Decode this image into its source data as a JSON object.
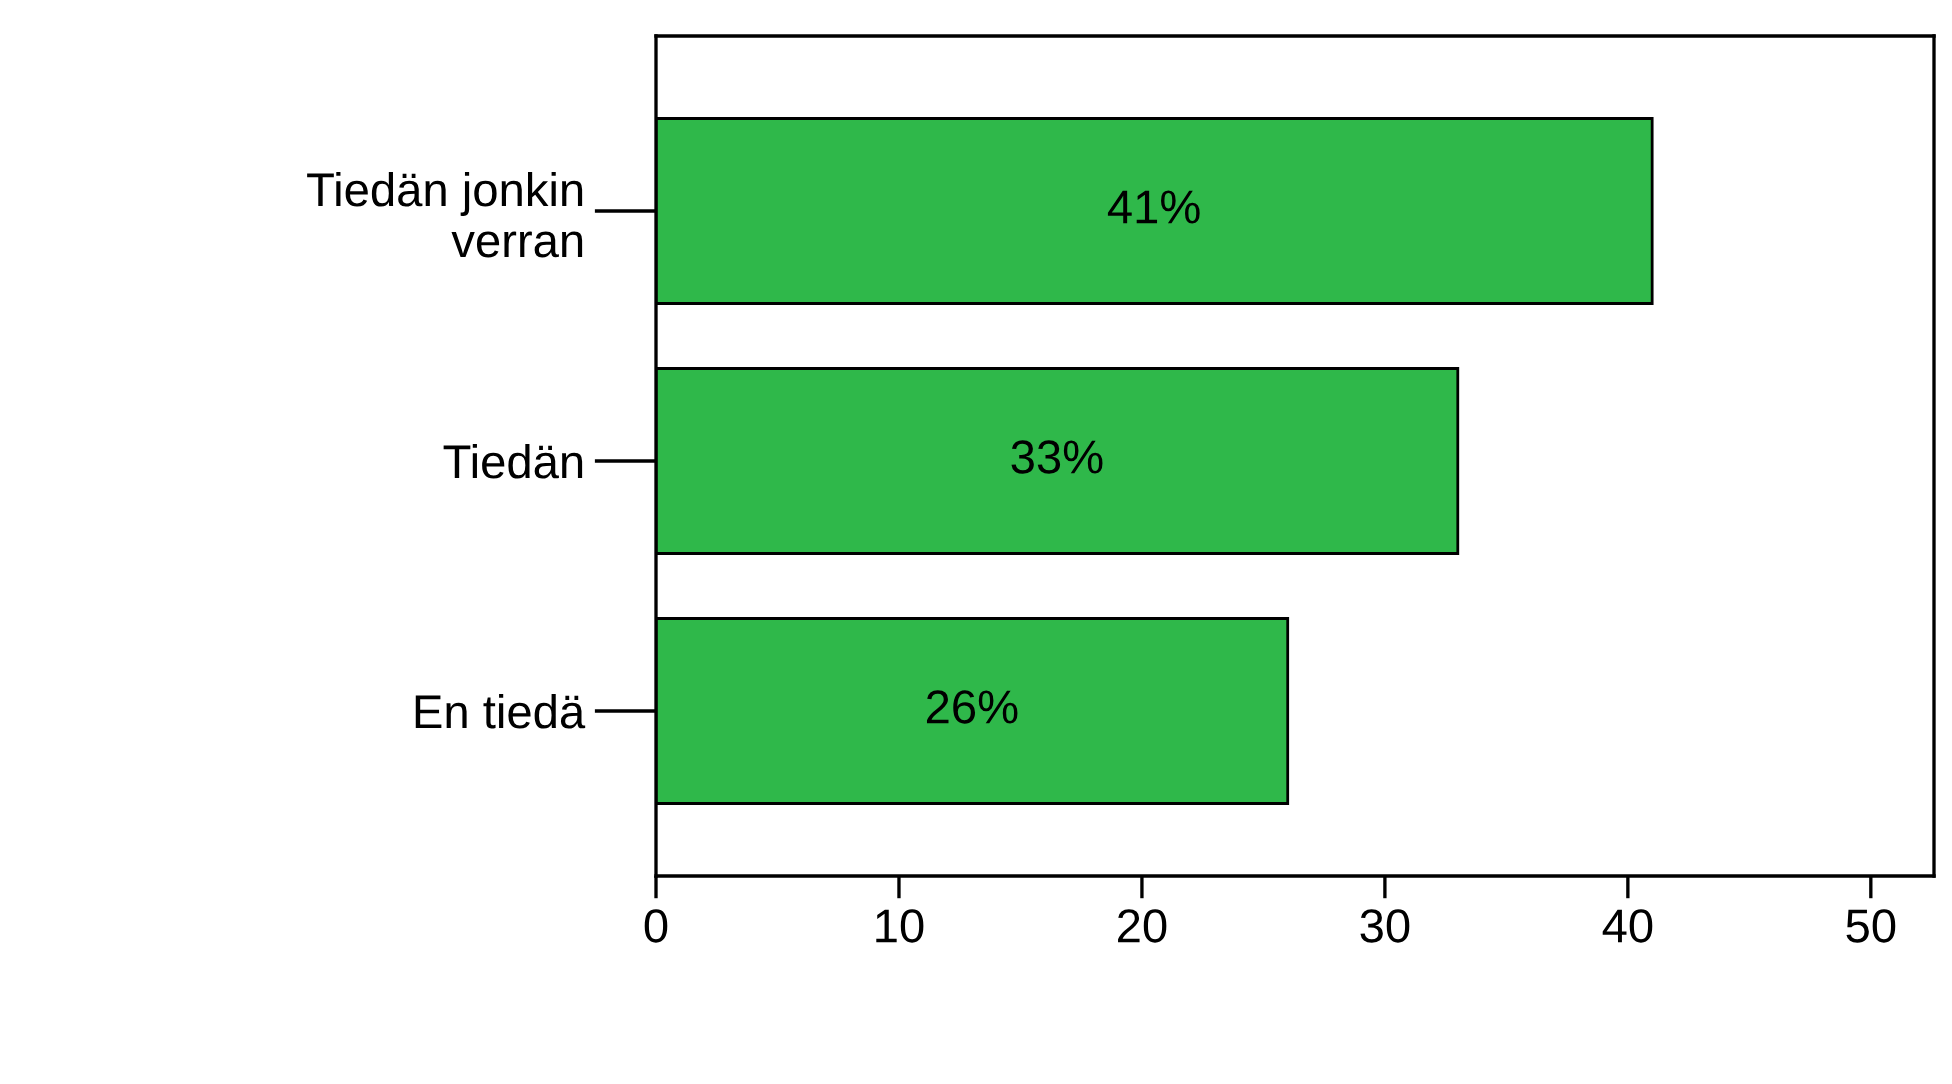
{
  "chart_data": {
    "type": "bar",
    "orientation": "horizontal",
    "categories": [
      "Tiedän jonkin\nverran",
      "Tiedän",
      "En tiedä"
    ],
    "values": [
      41,
      33,
      26
    ],
    "value_labels": [
      "41%",
      "33%",
      "26%"
    ],
    "color": "#2fb84a",
    "xlim": [
      0,
      52.6
    ],
    "xticks": [
      0,
      10,
      20,
      30,
      40,
      50
    ],
    "grid": false
  }
}
